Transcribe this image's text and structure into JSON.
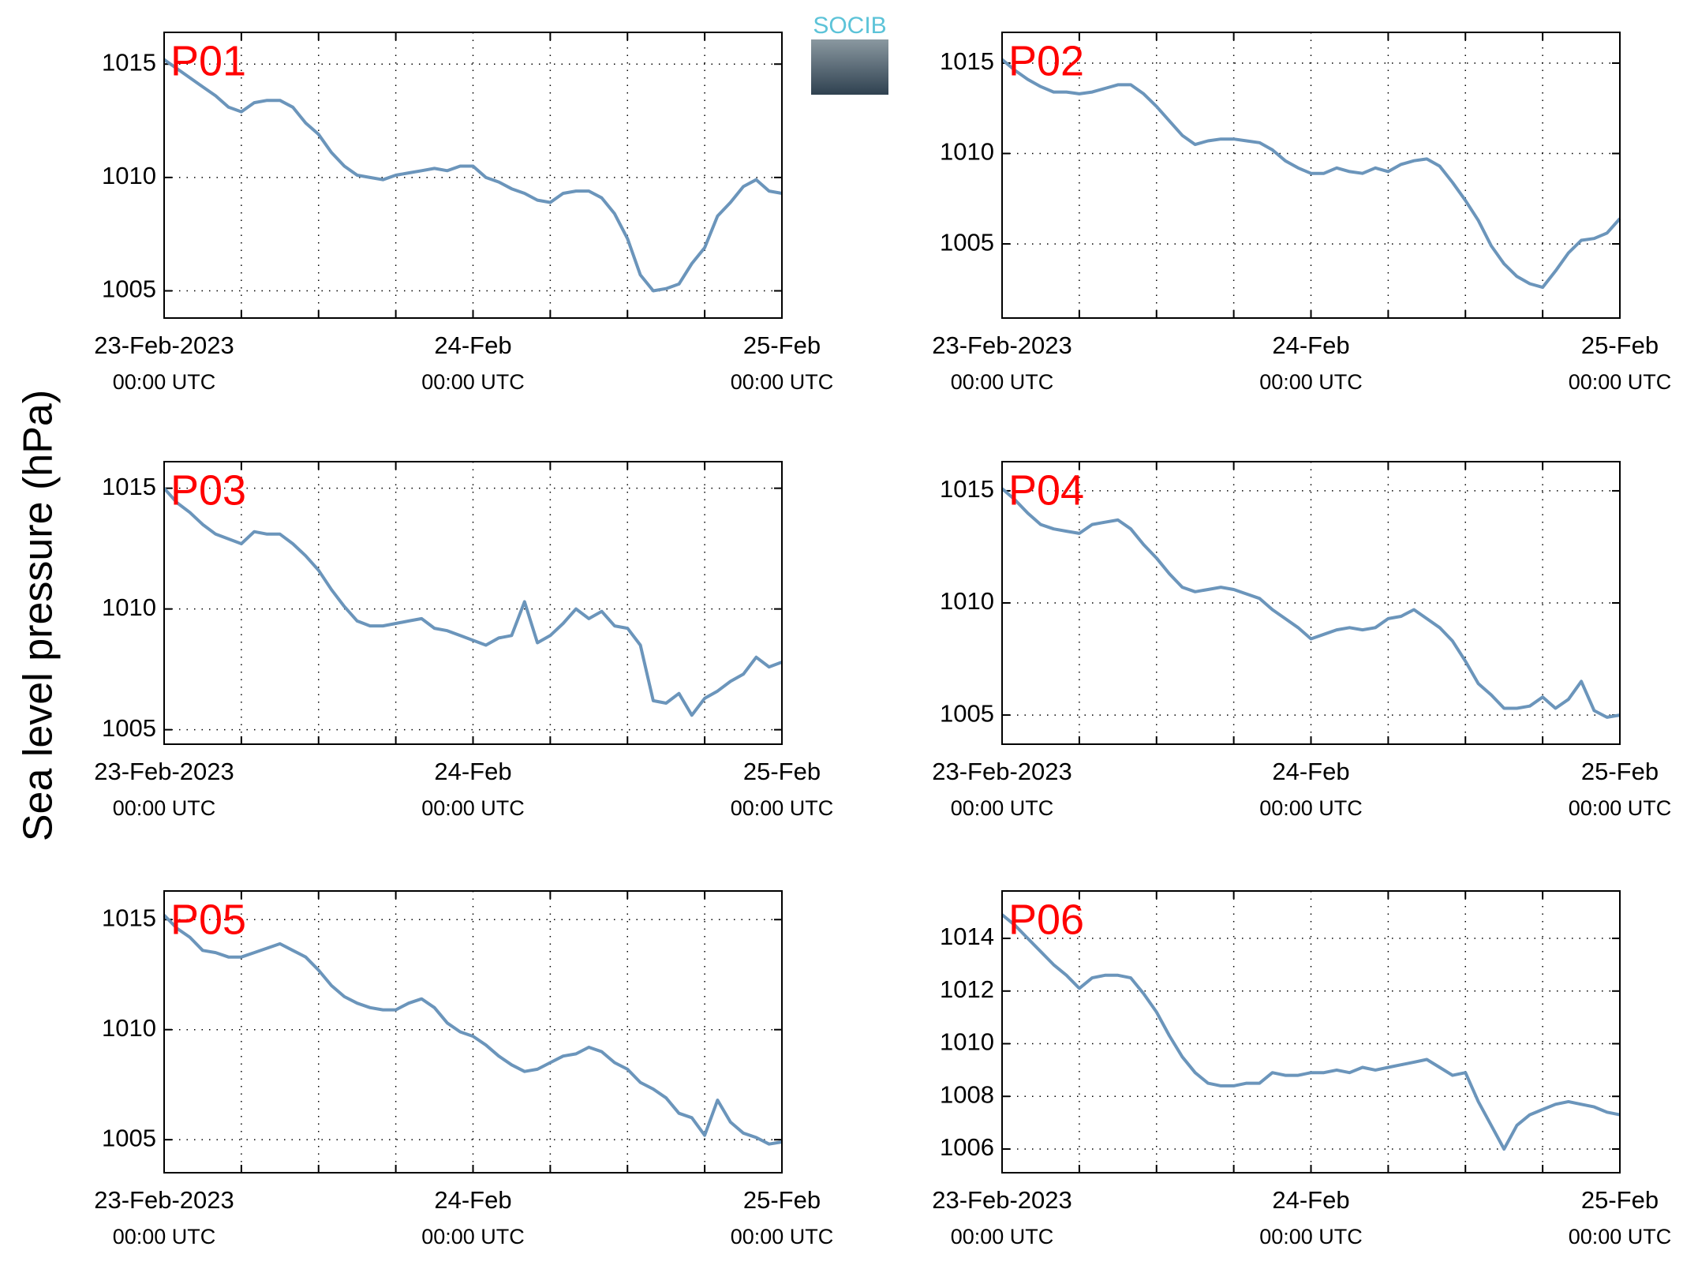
{
  "ylabel": "Sea level pressure (hPa)",
  "logo": "SOCIB",
  "chart_data": [
    {
      "type": "line",
      "x": [
        0,
        1,
        2,
        3,
        4,
        5,
        6,
        7,
        8,
        9,
        10,
        11,
        12,
        13,
        14,
        15,
        16,
        17,
        18,
        19,
        20,
        21,
        22,
        23,
        24,
        25,
        26,
        27,
        28,
        29,
        30,
        31,
        32,
        33,
        34,
        35,
        36,
        37,
        38,
        39,
        40,
        41,
        42,
        43,
        44,
        45,
        46,
        47,
        48
      ],
      "xlim": [
        0,
        48
      ],
      "xticks": [
        {
          "value": 0,
          "label": "23-Feb-2023",
          "sublabel": "00:00 UTC"
        },
        {
          "value": 24,
          "label": "24-Feb",
          "sublabel": "00:00 UTC"
        },
        {
          "value": 48,
          "label": "25-Feb",
          "sublabel": "00:00 UTC"
        }
      ],
      "xminor": [
        6,
        12,
        18,
        30,
        36,
        42
      ],
      "ylim": [
        1003.8,
        1016.4
      ],
      "yticks": [
        1005,
        1010,
        1015
      ],
      "grid": true,
      "name_color": "#ff0000",
      "series": [
        {
          "name": "P01",
          "color": "#6b95bb",
          "values": [
            1015.2,
            1014.8,
            1014.4,
            1014.0,
            1013.6,
            1013.1,
            1012.9,
            1013.3,
            1013.4,
            1013.4,
            1013.1,
            1012.4,
            1011.9,
            1011.1,
            1010.5,
            1010.1,
            1010.0,
            1009.9,
            1010.1,
            1010.2,
            1010.3,
            1010.4,
            1010.3,
            1010.5,
            1010.5,
            1010.0,
            1009.8,
            1009.5,
            1009.3,
            1009.0,
            1008.9,
            1009.3,
            1009.4,
            1009.4,
            1009.1,
            1008.4,
            1007.3,
            1005.7,
            1005.0,
            1005.1,
            1005.3,
            1006.2,
            1006.9,
            1008.3,
            1008.9,
            1009.6,
            1009.9,
            1009.4,
            1009.3
          ]
        }
      ]
    },
    {
      "type": "line",
      "x": [
        0,
        1,
        2,
        3,
        4,
        5,
        6,
        7,
        8,
        9,
        10,
        11,
        12,
        13,
        14,
        15,
        16,
        17,
        18,
        19,
        20,
        21,
        22,
        23,
        24,
        25,
        26,
        27,
        28,
        29,
        30,
        31,
        32,
        33,
        34,
        35,
        36,
        37,
        38,
        39,
        40,
        41,
        42,
        43,
        44,
        45,
        46,
        47,
        48
      ],
      "xlim": [
        0,
        48
      ],
      "xticks": [
        {
          "value": 0,
          "label": "23-Feb-2023",
          "sublabel": "00:00 UTC"
        },
        {
          "value": 24,
          "label": "24-Feb",
          "sublabel": "00:00 UTC"
        },
        {
          "value": 48,
          "label": "25-Feb",
          "sublabel": "00:00 UTC"
        }
      ],
      "xminor": [
        6,
        12,
        18,
        30,
        36,
        42
      ],
      "ylim": [
        1000.9,
        1016.7
      ],
      "yticks": [
        1005,
        1010,
        1015
      ],
      "grid": true,
      "name_color": "#ff0000",
      "series": [
        {
          "name": "P02",
          "color": "#6b95bb",
          "values": [
            1015.2,
            1014.6,
            1014.1,
            1013.7,
            1013.4,
            1013.4,
            1013.3,
            1013.4,
            1013.6,
            1013.8,
            1013.8,
            1013.3,
            1012.6,
            1011.8,
            1011.0,
            1010.5,
            1010.7,
            1010.8,
            1010.8,
            1010.7,
            1010.6,
            1010.2,
            1009.6,
            1009.2,
            1008.9,
            1008.9,
            1009.2,
            1009.0,
            1008.9,
            1009.2,
            1009.0,
            1009.4,
            1009.6,
            1009.7,
            1009.3,
            1008.4,
            1007.4,
            1006.3,
            1004.9,
            1003.9,
            1003.2,
            1002.8,
            1002.6,
            1003.5,
            1004.5,
            1005.2,
            1005.3,
            1005.6,
            1006.4
          ]
        }
      ]
    },
    {
      "type": "line",
      "x": [
        0,
        1,
        2,
        3,
        4,
        5,
        6,
        7,
        8,
        9,
        10,
        11,
        12,
        13,
        14,
        15,
        16,
        17,
        18,
        19,
        20,
        21,
        22,
        23,
        24,
        25,
        26,
        27,
        28,
        29,
        30,
        31,
        32,
        33,
        34,
        35,
        36,
        37,
        38,
        39,
        40,
        41,
        42,
        43,
        44,
        45,
        46,
        47,
        48
      ],
      "xlim": [
        0,
        48
      ],
      "xticks": [
        {
          "value": 0,
          "label": "23-Feb-2023",
          "sublabel": "00:00 UTC"
        },
        {
          "value": 24,
          "label": "24-Feb",
          "sublabel": "00:00 UTC"
        },
        {
          "value": 48,
          "label": "25-Feb",
          "sublabel": "00:00 UTC"
        }
      ],
      "xminor": [
        6,
        12,
        18,
        30,
        36,
        42
      ],
      "ylim": [
        1004.4,
        1016.1
      ],
      "yticks": [
        1005,
        1010,
        1015
      ],
      "grid": true,
      "name_color": "#ff0000",
      "series": [
        {
          "name": "P03",
          "color": "#6b95bb",
          "values": [
            1015.0,
            1014.4,
            1014.0,
            1013.5,
            1013.1,
            1012.9,
            1012.7,
            1013.2,
            1013.1,
            1013.1,
            1012.7,
            1012.2,
            1011.6,
            1010.8,
            1010.1,
            1009.5,
            1009.3,
            1009.3,
            1009.4,
            1009.5,
            1009.6,
            1009.2,
            1009.1,
            1008.9,
            1008.7,
            1008.5,
            1008.8,
            1008.9,
            1010.3,
            1008.6,
            1008.9,
            1009.4,
            1010.0,
            1009.6,
            1009.9,
            1009.3,
            1009.2,
            1008.5,
            1006.2,
            1006.1,
            1006.5,
            1005.6,
            1006.3,
            1006.6,
            1007.0,
            1007.3,
            1008.0,
            1007.6,
            1007.8
          ]
        }
      ]
    },
    {
      "type": "line",
      "x": [
        0,
        1,
        2,
        3,
        4,
        5,
        6,
        7,
        8,
        9,
        10,
        11,
        12,
        13,
        14,
        15,
        16,
        17,
        18,
        19,
        20,
        21,
        22,
        23,
        24,
        25,
        26,
        27,
        28,
        29,
        30,
        31,
        32,
        33,
        34,
        35,
        36,
        37,
        38,
        39,
        40,
        41,
        42,
        43,
        44,
        45,
        46,
        47,
        48
      ],
      "xlim": [
        0,
        48
      ],
      "xticks": [
        {
          "value": 0,
          "label": "23-Feb-2023",
          "sublabel": "00:00 UTC"
        },
        {
          "value": 24,
          "label": "24-Feb",
          "sublabel": "00:00 UTC"
        },
        {
          "value": 48,
          "label": "25-Feb",
          "sublabel": "00:00 UTC"
        }
      ],
      "xminor": [
        6,
        12,
        18,
        30,
        36,
        42
      ],
      "ylim": [
        1003.7,
        1016.3
      ],
      "yticks": [
        1005,
        1010,
        1015
      ],
      "grid": true,
      "name_color": "#ff0000",
      "series": [
        {
          "name": "P04",
          "color": "#6b95bb",
          "values": [
            1015.1,
            1014.6,
            1014.0,
            1013.5,
            1013.3,
            1013.2,
            1013.1,
            1013.5,
            1013.6,
            1013.7,
            1013.3,
            1012.6,
            1012.0,
            1011.3,
            1010.7,
            1010.5,
            1010.6,
            1010.7,
            1010.6,
            1010.4,
            1010.2,
            1009.7,
            1009.3,
            1008.9,
            1008.4,
            1008.6,
            1008.8,
            1008.9,
            1008.8,
            1008.9,
            1009.3,
            1009.4,
            1009.7,
            1009.3,
            1008.9,
            1008.3,
            1007.4,
            1006.4,
            1005.9,
            1005.3,
            1005.3,
            1005.4,
            1005.8,
            1005.3,
            1005.7,
            1006.5,
            1005.2,
            1004.9,
            1005.0
          ]
        }
      ]
    },
    {
      "type": "line",
      "x": [
        0,
        1,
        2,
        3,
        4,
        5,
        6,
        7,
        8,
        9,
        10,
        11,
        12,
        13,
        14,
        15,
        16,
        17,
        18,
        19,
        20,
        21,
        22,
        23,
        24,
        25,
        26,
        27,
        28,
        29,
        30,
        31,
        32,
        33,
        34,
        35,
        36,
        37,
        38,
        39,
        40,
        41,
        42,
        43,
        44,
        45,
        46,
        47,
        48
      ],
      "xlim": [
        0,
        48
      ],
      "xticks": [
        {
          "value": 0,
          "label": "23-Feb-2023",
          "sublabel": "00:00 UTC"
        },
        {
          "value": 24,
          "label": "24-Feb",
          "sublabel": "00:00 UTC"
        },
        {
          "value": 48,
          "label": "25-Feb",
          "sublabel": "00:00 UTC"
        }
      ],
      "xminor": [
        6,
        12,
        18,
        30,
        36,
        42
      ],
      "ylim": [
        1003.5,
        1016.3
      ],
      "yticks": [
        1005,
        1010,
        1015
      ],
      "grid": true,
      "name_color": "#ff0000",
      "series": [
        {
          "name": "P05",
          "color": "#6b95bb",
          "values": [
            1015.2,
            1014.6,
            1014.2,
            1013.6,
            1013.5,
            1013.3,
            1013.3,
            1013.5,
            1013.7,
            1013.9,
            1013.6,
            1013.3,
            1012.7,
            1012.0,
            1011.5,
            1011.2,
            1011.0,
            1010.9,
            1010.9,
            1011.2,
            1011.4,
            1011.0,
            1010.3,
            1009.9,
            1009.7,
            1009.3,
            1008.8,
            1008.4,
            1008.1,
            1008.2,
            1008.5,
            1008.8,
            1008.9,
            1009.2,
            1009.0,
            1008.5,
            1008.2,
            1007.6,
            1007.3,
            1006.9,
            1006.2,
            1006.0,
            1005.2,
            1006.8,
            1005.8,
            1005.3,
            1005.1,
            1004.8,
            1004.9
          ]
        }
      ]
    },
    {
      "type": "line",
      "x": [
        0,
        1,
        2,
        3,
        4,
        5,
        6,
        7,
        8,
        9,
        10,
        11,
        12,
        13,
        14,
        15,
        16,
        17,
        18,
        19,
        20,
        21,
        22,
        23,
        24,
        25,
        26,
        27,
        28,
        29,
        30,
        31,
        32,
        33,
        34,
        35,
        36,
        37,
        38,
        39,
        40,
        41,
        42,
        43,
        44,
        45,
        46,
        47,
        48
      ],
      "xlim": [
        0,
        48
      ],
      "xticks": [
        {
          "value": 0,
          "label": "23-Feb-2023",
          "sublabel": "00:00 UTC"
        },
        {
          "value": 24,
          "label": "24-Feb",
          "sublabel": "00:00 UTC"
        },
        {
          "value": 48,
          "label": "25-Feb",
          "sublabel": "00:00 UTC"
        }
      ],
      "xminor": [
        6,
        12,
        18,
        30,
        36,
        42
      ],
      "ylim": [
        1005.1,
        1015.8
      ],
      "yticks": [
        1006,
        1008,
        1010,
        1012,
        1014
      ],
      "grid": true,
      "name_color": "#ff0000",
      "series": [
        {
          "name": "P06",
          "color": "#6b95bb",
          "values": [
            1014.9,
            1014.5,
            1014.0,
            1013.5,
            1013.0,
            1012.6,
            1012.1,
            1012.5,
            1012.6,
            1012.6,
            1012.5,
            1011.9,
            1011.2,
            1010.3,
            1009.5,
            1008.9,
            1008.5,
            1008.4,
            1008.4,
            1008.5,
            1008.5,
            1008.9,
            1008.8,
            1008.8,
            1008.9,
            1008.9,
            1009.0,
            1008.9,
            1009.1,
            1009.0,
            1009.1,
            1009.2,
            1009.3,
            1009.4,
            1009.1,
            1008.8,
            1008.9,
            1007.8,
            1006.9,
            1006.0,
            1006.9,
            1007.3,
            1007.5,
            1007.7,
            1007.8,
            1007.7,
            1007.6,
            1007.4,
            1007.3
          ]
        }
      ]
    }
  ]
}
